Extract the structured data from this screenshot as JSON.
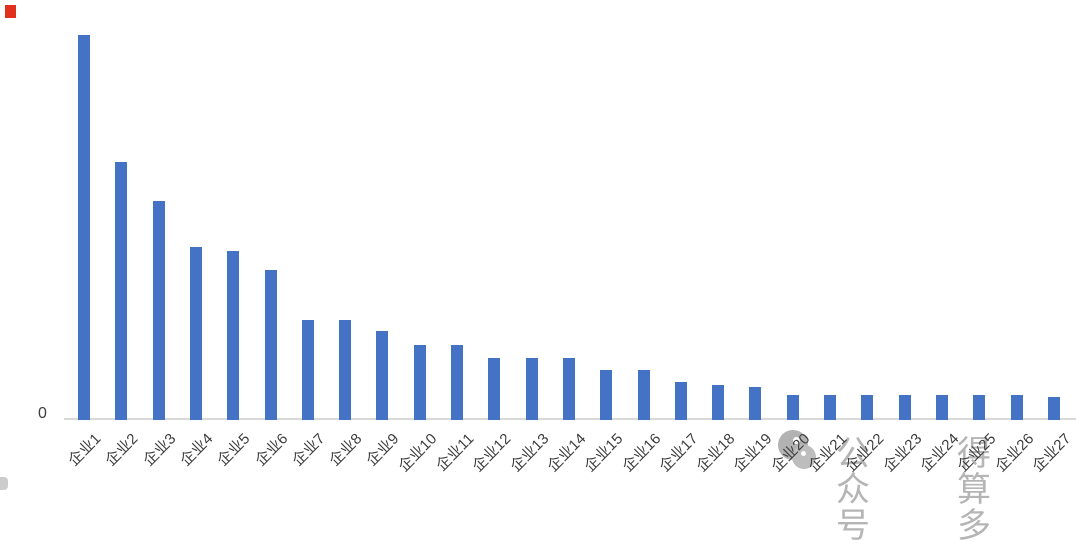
{
  "chart_data": {
    "type": "bar",
    "title": "",
    "xlabel": "",
    "ylabel": "",
    "categories": [
      "企业1",
      "企业2",
      "企业3",
      "企业4",
      "企业5",
      "企业6",
      "企业7",
      "企业8",
      "企业9",
      "企业10",
      "企业11",
      "企业12",
      "企业13",
      "企业14",
      "企业15",
      "企业16",
      "企业17",
      "企业18",
      "企业19",
      "企业20",
      "企业21",
      "企业22",
      "企业23",
      "企业24",
      "企业25",
      "企业26",
      "企业27"
    ],
    "values": [
      100,
      67,
      57,
      45,
      44,
      39,
      26,
      26,
      23,
      19.5,
      19.5,
      16,
      16,
      16,
      13,
      13,
      10,
      9,
      8.5,
      6.5,
      6.5,
      6.5,
      6.5,
      6.5,
      6.5,
      6.5,
      6
    ],
    "value_note": "relative units; y-axis shows only a 0 tick, tallest bar normalized to 100",
    "y_zero_label": "0",
    "y_ticks": [
      "0"
    ],
    "ylim": [
      0,
      105
    ],
    "grid": false,
    "legend": false,
    "bar_color": "#4472c4",
    "axis_line_color": "#d9d9d9",
    "tick_label_color": "#3d3d3d",
    "x_label_rotation_deg": 45
  },
  "watermark": {
    "prefix": "公众号",
    "name": "得算多",
    "color": "#b5b5b5",
    "icon": "wechat-public-account-logo",
    "icon_color": "#b2b2b2"
  },
  "corner_markers": {
    "top_left_color": "#e0301e",
    "bottom_left_color": "#cccccc"
  }
}
